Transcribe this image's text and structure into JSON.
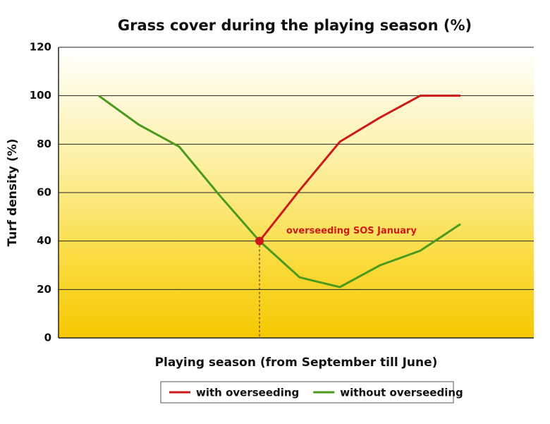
{
  "chart_data": {
    "type": "line",
    "title": "Grass cover during the playing season (%)",
    "x_label": "Playing season (from September till June)",
    "y_label": "Turf density (%)",
    "annotation": "overseeding SOS January",
    "categories": [
      null,
      null,
      null,
      null,
      null,
      null,
      null,
      null,
      null,
      null
    ],
    "series": [
      {
        "name": "with overseeding",
        "color": "#cc1a1a",
        "values": [
          null,
          null,
          null,
          null,
          40,
          61,
          81,
          91,
          100,
          100
        ]
      },
      {
        "name": "without overseeding",
        "color": "#4a9a1e",
        "values": [
          100,
          88,
          79,
          59,
          40,
          25,
          21,
          30,
          36,
          47
        ]
      }
    ],
    "ylim": [
      0,
      120
    ],
    "yticks": [
      0,
      20,
      40,
      60,
      80,
      100,
      120
    ],
    "grid": true
  }
}
